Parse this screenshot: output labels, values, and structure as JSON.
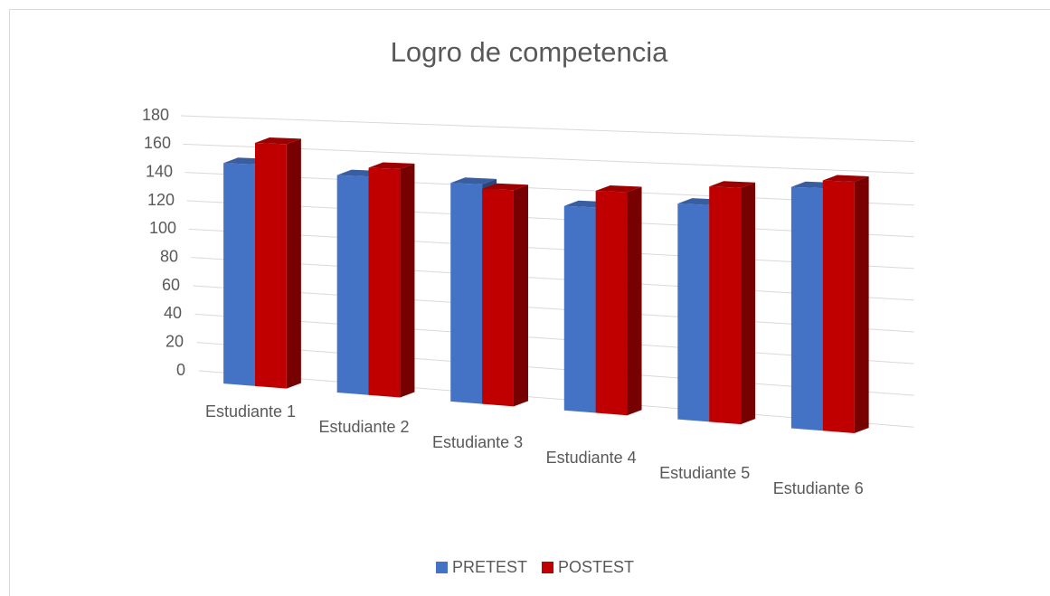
{
  "chart_data": {
    "type": "bar3d",
    "title": "Logro de competencia",
    "categories": [
      "Estudiante 1",
      "Estudiante 2",
      "Estudiante 3",
      "Estudiante 4",
      "Estudiante 5",
      "Estudiante 6"
    ],
    "series": [
      {
        "name": "PRETEST",
        "color": "#4472c4",
        "values": [
          155,
          150,
          148,
          136,
          141,
          155
        ]
      },
      {
        "name": "POSTEST",
        "color": "#c00000",
        "values": [
          170,
          156,
          145,
          147,
          153,
          160
        ]
      }
    ],
    "ylim": [
      0,
      180
    ],
    "yticks": [
      0,
      20,
      40,
      60,
      80,
      100,
      120,
      140,
      160,
      180
    ],
    "grid": true,
    "legend": "bottom"
  }
}
